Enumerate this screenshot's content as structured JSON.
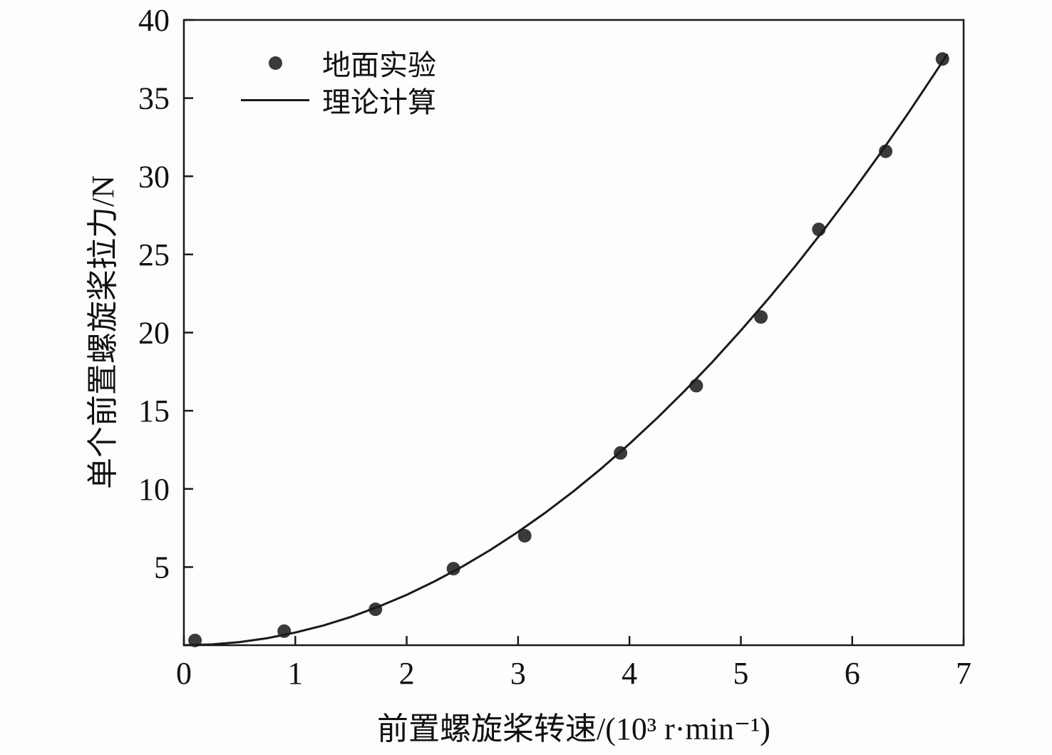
{
  "chart_data": {
    "type": "scatter",
    "title": "",
    "xlabel": "前置螺旋桨转速/(10³ r·min⁻¹)",
    "ylabel": "单个前置螺旋桨拉力/N",
    "xlim": [
      0,
      7
    ],
    "ylim": [
      0,
      40
    ],
    "xticks": [
      0,
      1,
      2,
      3,
      4,
      5,
      6,
      7
    ],
    "yticks": [
      0,
      5,
      10,
      15,
      20,
      25,
      30,
      35,
      40
    ],
    "grid": false,
    "legend_position": "upper-left",
    "frame_color": "#1a1a1a",
    "text_color": "#111111",
    "series": [
      {
        "name": "地面实验",
        "type": "scatter",
        "color": "#3a3a3a",
        "marker": "circle",
        "marker_radius": 9.5,
        "points": [
          [
            0.1,
            0.3
          ],
          [
            0.9,
            0.9
          ],
          [
            1.72,
            2.3
          ],
          [
            2.42,
            4.9
          ],
          [
            3.06,
            7.0
          ],
          [
            3.92,
            12.3
          ],
          [
            4.6,
            16.6
          ],
          [
            5.18,
            21.0
          ],
          [
            5.7,
            26.6
          ],
          [
            6.3,
            31.6
          ],
          [
            6.81,
            37.5
          ]
        ]
      },
      {
        "name": "理论计算",
        "type": "line",
        "color": "#1a1a1a",
        "line_width": 3,
        "points": [
          [
            0,
            0
          ],
          [
            0.25,
            0.05
          ],
          [
            0.5,
            0.2
          ],
          [
            0.75,
            0.45
          ],
          [
            1,
            0.81
          ],
          [
            1.25,
            1.26
          ],
          [
            1.5,
            1.81
          ],
          [
            1.75,
            2.47
          ],
          [
            2,
            3.22
          ],
          [
            2.25,
            4.08
          ],
          [
            2.5,
            5.03
          ],
          [
            2.75,
            6.09
          ],
          [
            3,
            7.25
          ],
          [
            3.25,
            8.5
          ],
          [
            3.5,
            9.86
          ],
          [
            3.75,
            11.32
          ],
          [
            4,
            12.88
          ],
          [
            4.25,
            14.54
          ],
          [
            4.5,
            16.3
          ],
          [
            4.75,
            18.16
          ],
          [
            5,
            20.13
          ],
          [
            5.25,
            22.19
          ],
          [
            5.5,
            24.35
          ],
          [
            5.75,
            26.62
          ],
          [
            6,
            28.98
          ],
          [
            6.25,
            31.45
          ],
          [
            6.5,
            34.01
          ],
          [
            6.75,
            36.68
          ],
          [
            6.85,
            37.77
          ]
        ]
      }
    ]
  }
}
